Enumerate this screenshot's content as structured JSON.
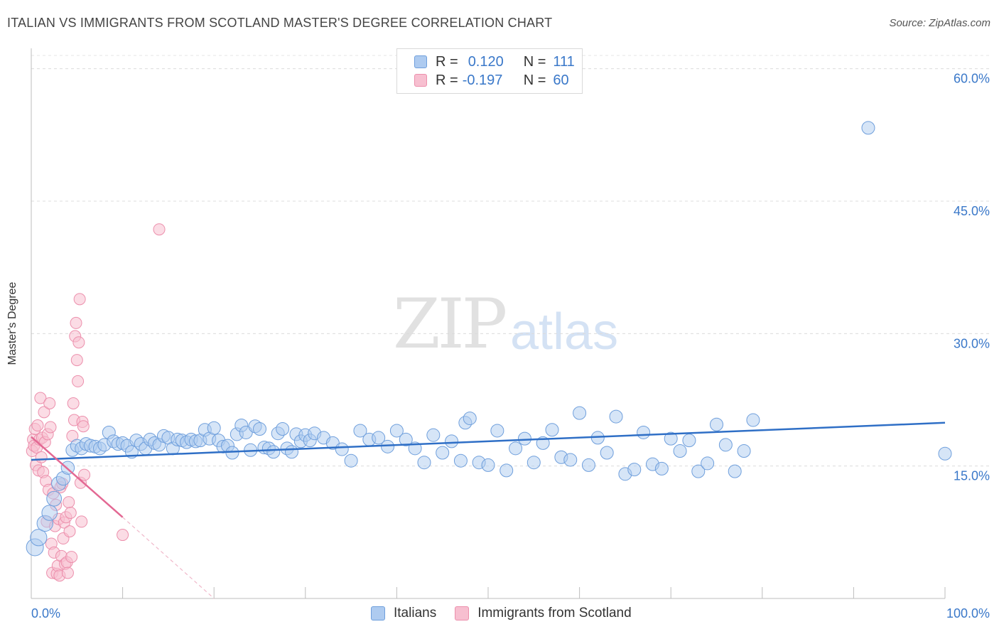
{
  "title": "ITALIAN VS IMMIGRANTS FROM SCOTLAND MASTER'S DEGREE CORRELATION CHART",
  "source": "Source: ZipAtlas.com",
  "watermark": {
    "zip": "ZIP",
    "atlas": "atlas"
  },
  "legend_top": [
    {
      "r_label": "R =",
      "r_value": "0.120",
      "n_label": "N =",
      "n_value": "111"
    },
    {
      "r_label": "R =",
      "r_value": "-0.197",
      "n_label": "N =",
      "n_value": "60"
    }
  ],
  "colors": {
    "italians_fill": "#aecbf0",
    "italians_stroke": "#6f9fdc",
    "italians_line": "#2f6fc6",
    "scotland_fill": "#f7bfd0",
    "scotland_stroke": "#ec8fac",
    "scotland_line": "#e36893",
    "axis_label": "#3a78c9"
  },
  "chart_data": {
    "type": "scatter",
    "title": "ITALIAN VS IMMIGRANTS FROM SCOTLAND MASTER'S DEGREE CORRELATION CHART",
    "xlabel": "",
    "ylabel": "Master's Degree",
    "xlim": [
      0,
      100
    ],
    "ylim": [
      0,
      61.5
    ],
    "x_ticks": [
      {
        "value": 0,
        "label": "0.0%"
      },
      {
        "value": 100,
        "label": "100.0%"
      }
    ],
    "y_ticks": [
      {
        "value": 15,
        "label": "15.0%"
      },
      {
        "value": 30,
        "label": "30.0%"
      },
      {
        "value": 45,
        "label": "45.0%"
      },
      {
        "value": 60,
        "label": "60.0%"
      }
    ],
    "grid": true,
    "legend_position": "bottom",
    "series": [
      {
        "name": "Italians",
        "trend": {
          "x": [
            0,
            100
          ],
          "y": [
            15.7,
            19.9
          ]
        },
        "points": [
          [
            0.4,
            5.8
          ],
          [
            0.8,
            6.9
          ],
          [
            1.5,
            8.5
          ],
          [
            2.0,
            9.7
          ],
          [
            2.5,
            11.3
          ],
          [
            3.0,
            13.0
          ],
          [
            3.5,
            13.6
          ],
          [
            4.0,
            14.8
          ],
          [
            4.5,
            16.8
          ],
          [
            5.0,
            17.3
          ],
          [
            5.5,
            17.0
          ],
          [
            6.0,
            17.5
          ],
          [
            6.5,
            17.3
          ],
          [
            7.0,
            17.2
          ],
          [
            7.5,
            17.0
          ],
          [
            8.0,
            17.4
          ],
          [
            8.5,
            18.8
          ],
          [
            9.0,
            17.8
          ],
          [
            9.5,
            17.5
          ],
          [
            10.0,
            17.6
          ],
          [
            10.5,
            17.3
          ],
          [
            11.0,
            16.6
          ],
          [
            11.5,
            17.9
          ],
          [
            12.0,
            17.5
          ],
          [
            12.5,
            17.0
          ],
          [
            13.0,
            18.0
          ],
          [
            13.5,
            17.6
          ],
          [
            14.0,
            17.4
          ],
          [
            14.5,
            18.4
          ],
          [
            15.0,
            18.2
          ],
          [
            15.5,
            17.0
          ],
          [
            16.0,
            18.0
          ],
          [
            16.5,
            17.9
          ],
          [
            17.0,
            17.7
          ],
          [
            17.5,
            18.0
          ],
          [
            18.0,
            17.8
          ],
          [
            18.5,
            17.9
          ],
          [
            19.0,
            19.1
          ],
          [
            19.5,
            18.1
          ],
          [
            20.0,
            19.3
          ],
          [
            20.5,
            17.9
          ],
          [
            21.0,
            17.2
          ],
          [
            21.5,
            17.3
          ],
          [
            22.0,
            16.5
          ],
          [
            22.5,
            18.6
          ],
          [
            23.0,
            19.6
          ],
          [
            23.5,
            18.8
          ],
          [
            24.0,
            16.8
          ],
          [
            24.5,
            19.5
          ],
          [
            25.0,
            19.2
          ],
          [
            25.5,
            17.1
          ],
          [
            26.0,
            17.0
          ],
          [
            26.5,
            16.6
          ],
          [
            27.0,
            18.7
          ],
          [
            27.5,
            19.2
          ],
          [
            28.0,
            17.0
          ],
          [
            28.5,
            16.6
          ],
          [
            29.0,
            18.6
          ],
          [
            29.5,
            17.8
          ],
          [
            30.0,
            18.5
          ],
          [
            30.5,
            17.9
          ],
          [
            31.0,
            18.7
          ],
          [
            32.0,
            18.2
          ],
          [
            33.0,
            17.6
          ],
          [
            34.0,
            16.9
          ],
          [
            35.0,
            15.6
          ],
          [
            36.0,
            19.0
          ],
          [
            37.0,
            18.0
          ],
          [
            38.0,
            18.2
          ],
          [
            39.0,
            17.2
          ],
          [
            40.0,
            19.0
          ],
          [
            41.0,
            18.0
          ],
          [
            42.0,
            17.0
          ],
          [
            43.0,
            15.4
          ],
          [
            44.0,
            18.5
          ],
          [
            45.0,
            16.5
          ],
          [
            46.0,
            17.8
          ],
          [
            47.0,
            15.6
          ],
          [
            47.5,
            19.9
          ],
          [
            48.0,
            20.4
          ],
          [
            49.0,
            15.4
          ],
          [
            50.0,
            15.1
          ],
          [
            51.0,
            19.0
          ],
          [
            52.0,
            14.5
          ],
          [
            53.0,
            17.0
          ],
          [
            54.0,
            18.1
          ],
          [
            55.0,
            15.4
          ],
          [
            56.0,
            17.6
          ],
          [
            57.0,
            19.1
          ],
          [
            58.0,
            16.0
          ],
          [
            59.0,
            15.7
          ],
          [
            60.0,
            21.0
          ],
          [
            61.0,
            15.1
          ],
          [
            62.0,
            18.2
          ],
          [
            63.0,
            16.5
          ],
          [
            64.0,
            20.6
          ],
          [
            65.0,
            14.1
          ],
          [
            66.0,
            14.6
          ],
          [
            67.0,
            18.8
          ],
          [
            68.0,
            15.2
          ],
          [
            69.0,
            14.7
          ],
          [
            70.0,
            18.1
          ],
          [
            71.0,
            16.7
          ],
          [
            72.0,
            17.9
          ],
          [
            73.0,
            14.4
          ],
          [
            74.0,
            15.3
          ],
          [
            75.0,
            19.7
          ],
          [
            76.0,
            17.4
          ],
          [
            77.0,
            14.4
          ],
          [
            78.0,
            16.7
          ],
          [
            79.0,
            20.2
          ],
          [
            91.6,
            53.3
          ],
          [
            100.0,
            16.4
          ]
        ]
      },
      {
        "name": "Immigrants from Scotland",
        "trend": {
          "x": [
            0,
            10
          ],
          "y": [
            18.3,
            9.2
          ],
          "dashed_x": [
            10,
            20
          ],
          "dashed_y": [
            9.2,
            0
          ]
        },
        "points": [
          [
            0.1,
            16.7
          ],
          [
            0.2,
            18.0
          ],
          [
            0.3,
            17.3
          ],
          [
            0.4,
            19.2
          ],
          [
            0.5,
            15.1
          ],
          [
            0.6,
            17.1
          ],
          [
            0.7,
            19.6
          ],
          [
            0.8,
            14.5
          ],
          [
            0.9,
            18.0
          ],
          [
            1.0,
            22.7
          ],
          [
            1.1,
            16.0
          ],
          [
            1.2,
            18.2
          ],
          [
            1.3,
            14.3
          ],
          [
            1.4,
            21.1
          ],
          [
            1.5,
            17.7
          ],
          [
            1.6,
            13.3
          ],
          [
            1.7,
            8.7
          ],
          [
            1.8,
            18.6
          ],
          [
            1.9,
            12.3
          ],
          [
            2.0,
            22.1
          ],
          [
            2.1,
            19.4
          ],
          [
            2.2,
            6.2
          ],
          [
            2.3,
            2.9
          ],
          [
            2.4,
            11.9
          ],
          [
            2.5,
            5.2
          ],
          [
            2.6,
            8.2
          ],
          [
            2.7,
            10.6
          ],
          [
            2.8,
            2.8
          ],
          [
            2.9,
            3.7
          ],
          [
            3.0,
            9.0
          ],
          [
            3.1,
            2.6
          ],
          [
            3.2,
            12.6
          ],
          [
            3.3,
            4.8
          ],
          [
            3.4,
            13.0
          ],
          [
            3.5,
            6.8
          ],
          [
            3.6,
            8.6
          ],
          [
            3.7,
            3.9
          ],
          [
            3.8,
            9.2
          ],
          [
            3.9,
            4.1
          ],
          [
            4.0,
            2.9
          ],
          [
            4.1,
            10.9
          ],
          [
            4.2,
            7.6
          ],
          [
            4.3,
            9.7
          ],
          [
            4.4,
            4.7
          ],
          [
            4.5,
            18.4
          ],
          [
            4.6,
            22.1
          ],
          [
            4.7,
            20.2
          ],
          [
            4.8,
            29.7
          ],
          [
            4.9,
            31.2
          ],
          [
            5.0,
            27.0
          ],
          [
            5.1,
            24.6
          ],
          [
            5.2,
            29.0
          ],
          [
            5.3,
            33.9
          ],
          [
            5.4,
            13.1
          ],
          [
            5.5,
            8.7
          ],
          [
            5.6,
            20.0
          ],
          [
            5.7,
            19.5
          ],
          [
            5.8,
            14.0
          ],
          [
            10.0,
            7.2
          ],
          [
            14.0,
            41.8
          ]
        ]
      }
    ]
  }
}
